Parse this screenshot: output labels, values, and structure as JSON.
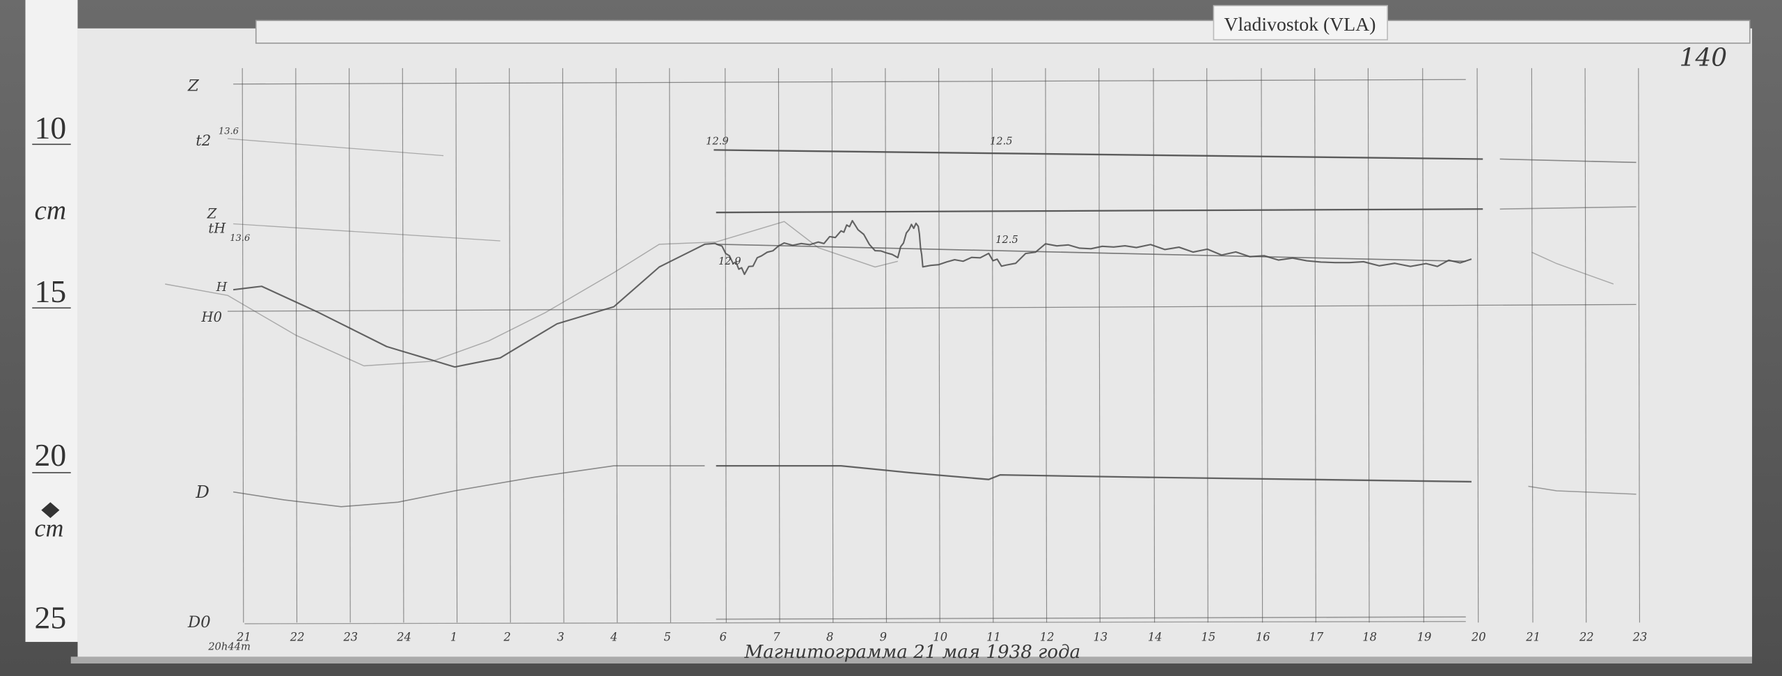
{
  "station_label": "Vladivostok (VLA)",
  "sheet_number": "140",
  "ruler": {
    "marks": [
      "10",
      "cm",
      "15",
      "20",
      "cm",
      "25"
    ]
  },
  "trace_labels": {
    "z_base": "Z",
    "t2": "t2",
    "t2_value": "13.6",
    "z": "Z",
    "th": "tH",
    "th_value": "13.6",
    "h": "H",
    "h0": "H0",
    "d": "D",
    "d0": "D0",
    "start_time": "20h44m"
  },
  "annotations": {
    "temp_a": "12.9",
    "temp_b": "12.5",
    "h_a": "12.9",
    "h_b": "12.5"
  },
  "hour_labels": [
    "21",
    "22",
    "23",
    "24",
    "1",
    "2",
    "3",
    "4",
    "5",
    "6",
    "7",
    "8",
    "9",
    "10",
    "11",
    "12",
    "13",
    "14",
    "15",
    "16",
    "17",
    "18",
    "19",
    "20",
    "21",
    "22",
    "23"
  ],
  "date_caption": "Магнитограмма 21 мая 1938 года",
  "colors": {
    "paper": "#e9e9e9",
    "trace": "#4a4a4a",
    "grid": "#8a8a8a",
    "background": "#5a5a5a"
  }
}
